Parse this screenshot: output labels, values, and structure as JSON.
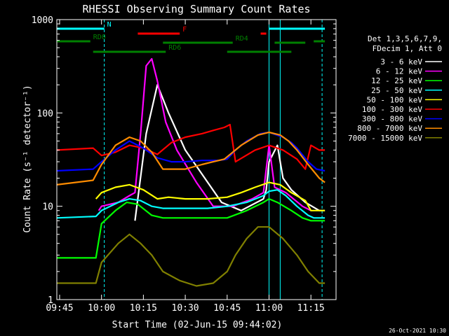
{
  "chart_data": {
    "type": "line",
    "title": "RHESSI Observing Summary Count Rates",
    "xlabel": "Start Time (02-Jun-15 09:44:02)",
    "ylabel": "Count Rate (s⁻¹ detector⁻¹)",
    "y_scale": "log",
    "ylim": [
      1,
      1000
    ],
    "xlim": [
      "09:44",
      "11:24"
    ],
    "x_ticks": [
      "09:45",
      "10:00",
      "10:15",
      "10:30",
      "10:45",
      "11:00",
      "11:15"
    ],
    "y_ticks": [
      "1",
      "10",
      "100",
      "1000"
    ],
    "legend_header": [
      "Det 1,3,5,6,7,9,",
      "FDecim 1, Att 0"
    ],
    "legend_position": "right",
    "date_stamp": "26-Oct-2021 10:30",
    "series": [
      {
        "name": "3 - 6 keV",
        "color": "#ffffff",
        "x": [
          "09:44",
          "09:59",
          "10:12",
          "10:16",
          "10:20",
          "10:24",
          "10:30",
          "10:37",
          "10:43",
          "10:50",
          "10:58",
          "10:59",
          "11:00",
          "11:03",
          "11:05",
          "11:08",
          "11:13",
          "11:18",
          "11:20"
        ],
        "values": [
          null,
          null,
          7,
          60,
          200,
          100,
          40,
          20,
          11,
          9,
          12,
          15,
          30,
          45,
          20,
          15,
          11,
          9,
          9
        ]
      },
      {
        "name": "6 - 12 keV",
        "color": "#ff00ff",
        "x": [
          "09:59",
          "10:00",
          "10:06",
          "10:10",
          "10:12",
          "10:14",
          "10:16",
          "10:18",
          "10:20",
          "10:23",
          "10:27",
          "10:34",
          "10:40",
          "10:47",
          "10:54",
          "10:58",
          "11:00",
          "11:02",
          "11:06",
          "11:12",
          "11:15"
        ],
        "values": [
          9,
          10,
          11,
          13,
          14,
          60,
          320,
          380,
          220,
          80,
          40,
          18,
          10,
          10,
          12,
          14,
          45,
          16,
          14,
          10,
          9
        ]
      },
      {
        "name": "12 - 25 keV",
        "color": "#00ff00",
        "x": [
          "09:44",
          "09:58",
          "10:00",
          "10:05",
          "10:09",
          "10:13",
          "10:18",
          "10:22",
          "10:30",
          "10:38",
          "10:45",
          "10:52",
          "10:58",
          "11:00",
          "11:03",
          "11:08",
          "11:12",
          "11:15",
          "11:20"
        ],
        "values": [
          2.8,
          2.8,
          6.5,
          9,
          11,
          10.5,
          8,
          7.5,
          7.5,
          7.5,
          7.5,
          9,
          11,
          12,
          11,
          9,
          7.5,
          7,
          7
        ]
      },
      {
        "name": "25 - 50 keV",
        "color": "#00ffff",
        "x": [
          "09:44",
          "09:58",
          "10:00",
          "10:06",
          "10:10",
          "10:14",
          "10:18",
          "10:22",
          "10:30",
          "10:38",
          "10:45",
          "10:52",
          "10:58",
          "11:00",
          "11:03",
          "11:06",
          "11:10",
          "11:14",
          "11:16",
          "11:20"
        ],
        "values": [
          7.5,
          7.8,
          9,
          11,
          12,
          11.5,
          10,
          9.5,
          9.5,
          9.5,
          10,
          11,
          13,
          14.5,
          15,
          13,
          10,
          8,
          7.5,
          7.5
        ]
      },
      {
        "name": "50 - 100 keV",
        "color": "#ffff00",
        "x": [
          "09:58",
          "10:00",
          "10:05",
          "10:10",
          "10:15",
          "10:20",
          "10:24",
          "10:30",
          "10:38",
          "10:45",
          "10:50",
          "10:55",
          "11:00",
          "11:04",
          "11:08",
          "11:13",
          "11:15",
          "11:18",
          "11:20"
        ],
        "values": [
          12,
          14,
          16,
          17,
          15,
          12,
          12.5,
          12,
          12,
          12.5,
          14,
          16,
          18,
          17,
          14,
          11.5,
          9,
          9,
          9
        ]
      },
      {
        "name": "100 - 300 keV",
        "color": "#ff0000",
        "x": [
          "09:44",
          "09:57",
          "10:00",
          "10:05",
          "10:10",
          "10:15",
          "10:20",
          "10:25",
          "10:30",
          "10:36",
          "10:40",
          "10:44",
          "10:46",
          "10:48",
          "10:55",
          "11:00",
          "11:05",
          "11:10",
          "11:13",
          "11:15",
          "11:18",
          "11:20"
        ],
        "values": [
          40,
          42,
          35,
          38,
          45,
          42,
          36,
          48,
          55,
          60,
          65,
          70,
          75,
          30,
          40,
          45,
          40,
          32,
          25,
          45,
          40,
          40
        ]
      },
      {
        "name": "300 - 800 keV",
        "color": "#0000ff",
        "x": [
          "09:44",
          "09:57",
          "10:00",
          "10:05",
          "10:10",
          "10:15",
          "10:20",
          "10:25",
          "10:30",
          "10:36",
          "10:42",
          "10:45",
          "10:48",
          "10:52",
          "10:57",
          "11:00",
          "11:05",
          "11:08",
          "11:10",
          "11:14",
          "11:17",
          "11:20"
        ],
        "values": [
          24,
          25,
          30,
          40,
          50,
          42,
          33,
          30,
          30,
          31,
          31,
          32,
          40,
          50,
          60,
          62,
          55,
          48,
          42,
          30,
          25,
          24
        ]
      },
      {
        "name": "800 - 7000 keV",
        "color": "#ff8c00",
        "x": [
          "09:44",
          "09:57",
          "10:00",
          "10:05",
          "10:10",
          "10:14",
          "10:18",
          "10:22",
          "10:30",
          "10:36",
          "10:40",
          "10:44",
          "10:50",
          "10:56",
          "11:00",
          "11:04",
          "11:07",
          "11:10",
          "11:14",
          "11:18",
          "11:20"
        ],
        "values": [
          17,
          19,
          28,
          45,
          55,
          50,
          38,
          25,
          25,
          28,
          30,
          32,
          45,
          58,
          62,
          58,
          50,
          40,
          28,
          20,
          18
        ]
      },
      {
        "name": "7000 - 15000 keV",
        "color": "#808000",
        "x": [
          "09:44",
          "09:58",
          "10:00",
          "10:06",
          "10:10",
          "10:14",
          "10:18",
          "10:22",
          "10:28",
          "10:34",
          "10:40",
          "10:45",
          "10:48",
          "10:52",
          "10:56",
          "11:00",
          "11:05",
          "11:10",
          "11:14",
          "11:18",
          "11:20"
        ],
        "values": [
          1.5,
          1.5,
          2.5,
          4,
          5,
          4,
          3,
          2,
          1.6,
          1.4,
          1.5,
          2,
          3,
          4.5,
          6,
          6,
          4.5,
          3,
          2,
          1.5,
          1.5
        ]
      }
    ],
    "flag_bars": [
      {
        "label": "N",
        "color": "#00ffff",
        "intervals": [
          [
            "09:44",
            "10:01"
          ],
          [
            "11:00",
            "11:20"
          ]
        ]
      },
      {
        "label": "F",
        "color": "#ff0000",
        "intervals": [
          [
            "10:13",
            "10:28"
          ],
          [
            "10:57",
            "10:59"
          ]
        ]
      },
      {
        "label": "RD0",
        "color": "#008000",
        "intervals": [
          [
            "09:44",
            "09:56"
          ],
          [
            "11:16",
            "11:20"
          ]
        ]
      },
      {
        "label": "RD4",
        "color": "#008000",
        "intervals": [
          [
            "10:22",
            "10:47"
          ],
          [
            "11:02",
            "11:13"
          ]
        ]
      },
      {
        "label": "RD6",
        "color": "#008000",
        "intervals": [
          [
            "09:57",
            "10:23"
          ],
          [
            "10:45",
            "11:08"
          ]
        ]
      }
    ],
    "vertical_markers": [
      {
        "x": "10:01",
        "color": "#00ffff",
        "style": "dashed"
      },
      {
        "x": "11:00",
        "color": "#00ffff",
        "style": "solid"
      },
      {
        "x": "11:04",
        "color": "#00ffff",
        "style": "solid"
      },
      {
        "x": "11:19",
        "color": "#00ffff",
        "style": "dashed"
      }
    ]
  }
}
